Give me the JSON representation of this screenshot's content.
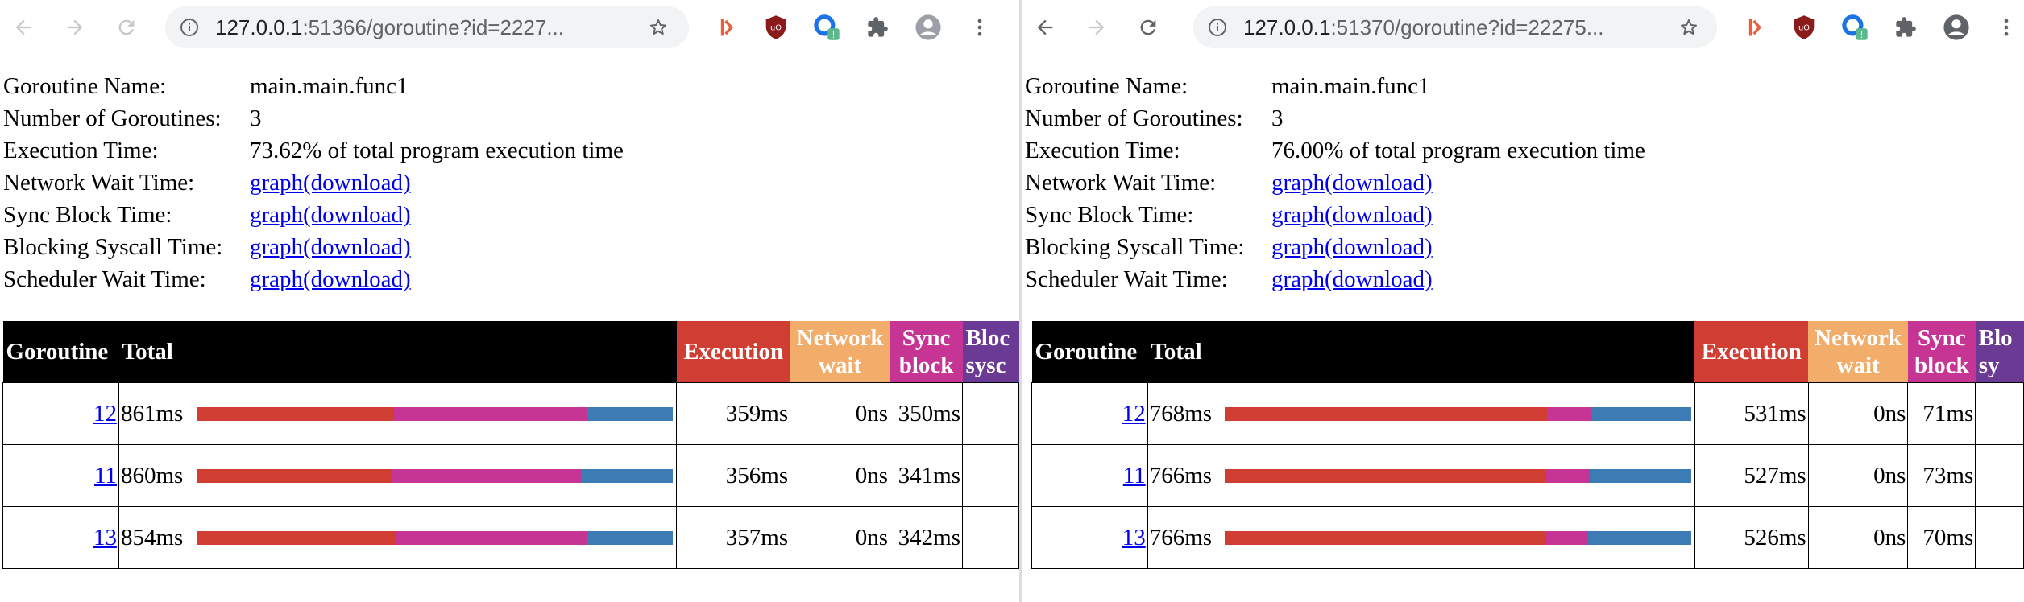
{
  "colors": {
    "execution": "#d03d32",
    "network_wait": "#f2ad6b",
    "sync_block": "#c73594",
    "blocking_syscall": "#6b3a94",
    "scheduler_wait": "#3d7bb5",
    "link": "#0000ee",
    "header_bg": "#000000"
  },
  "icons": {
    "back": "arrow-left-icon",
    "forward": "arrow-right-icon",
    "reload": "reload-icon",
    "site_info": "info-icon",
    "bookmark": "star-icon",
    "ext1": "extension-orange-icon",
    "ext2": "ublock-shield-icon",
    "ext3": "extension-blue-icon",
    "extensions": "puzzle-icon",
    "profile": "avatar-icon",
    "menu": "kebab-menu-icon"
  },
  "left": {
    "url_host": "127.0.0.1",
    "url_rest": ":51366/goroutine?id=2227...",
    "info": {
      "name_label": "Goroutine Name:",
      "name_value": "main.main.func1",
      "count_label": "Number of Goroutines:",
      "count_value": "3",
      "exec_label": "Execution Time:",
      "exec_value": "73.62% of total program execution time",
      "network_label": "Network Wait Time:",
      "sync_label": "Sync Block Time:",
      "syscall_label": "Blocking Syscall Time:",
      "sched_label": "Scheduler Wait Time:",
      "link_text": "graph(download)"
    },
    "table": {
      "headers": {
        "goroutine": "Goroutine",
        "total": "Total",
        "execution": "Execution",
        "network1": "Network",
        "network2": "wait",
        "sync1": "Sync",
        "sync2": "block",
        "syscall1": "Bloc",
        "syscall2": "sysc"
      },
      "rows": [
        {
          "id": "12",
          "total": "861ms",
          "execution": "359ms",
          "network": "0ns",
          "sync": "350ms",
          "bar": {
            "execution": 0.415,
            "sync": 0.405,
            "scheduler": 0.18
          }
        },
        {
          "id": "11",
          "total": "860ms",
          "execution": "356ms",
          "network": "0ns",
          "sync": "341ms",
          "bar": {
            "execution": 0.412,
            "sync": 0.395,
            "scheduler": 0.193
          }
        },
        {
          "id": "13",
          "total": "854ms",
          "execution": "357ms",
          "network": "0ns",
          "sync": "342ms",
          "bar": {
            "execution": 0.418,
            "sync": 0.4,
            "scheduler": 0.182
          }
        }
      ]
    }
  },
  "right": {
    "url_host": "127.0.0.1",
    "url_rest": ":51370/goroutine?id=22275...",
    "info": {
      "name_label": "Goroutine Name:",
      "name_value": "main.main.func1",
      "count_label": "Number of Goroutines:",
      "count_value": "3",
      "exec_label": "Execution Time:",
      "exec_value": "76.00% of total program execution time",
      "network_label": "Network Wait Time:",
      "sync_label": "Sync Block Time:",
      "syscall_label": "Blocking Syscall Time:",
      "sched_label": "Scheduler Wait Time:",
      "link_text": "graph(download)"
    },
    "table": {
      "headers": {
        "goroutine": "Goroutine",
        "total": "Total",
        "execution": "Execution",
        "network1": "Network",
        "network2": "wait",
        "sync1": "Sync",
        "sync2": "block",
        "syscall1": "Blo",
        "syscall2": "sy"
      },
      "rows": [
        {
          "id": "12",
          "total": "768ms",
          "execution": "531ms",
          "network": "0ns",
          "sync": "71ms",
          "bar": {
            "execution": 0.691,
            "sync": 0.093,
            "scheduler": 0.216
          }
        },
        {
          "id": "11",
          "total": "766ms",
          "execution": "527ms",
          "network": "0ns",
          "sync": "73ms",
          "bar": {
            "execution": 0.688,
            "sync": 0.095,
            "scheduler": 0.217
          }
        },
        {
          "id": "13",
          "total": "766ms",
          "execution": "526ms",
          "network": "0ns",
          "sync": "70ms",
          "bar": {
            "execution": 0.687,
            "sync": 0.091,
            "scheduler": 0.222
          }
        }
      ]
    }
  }
}
